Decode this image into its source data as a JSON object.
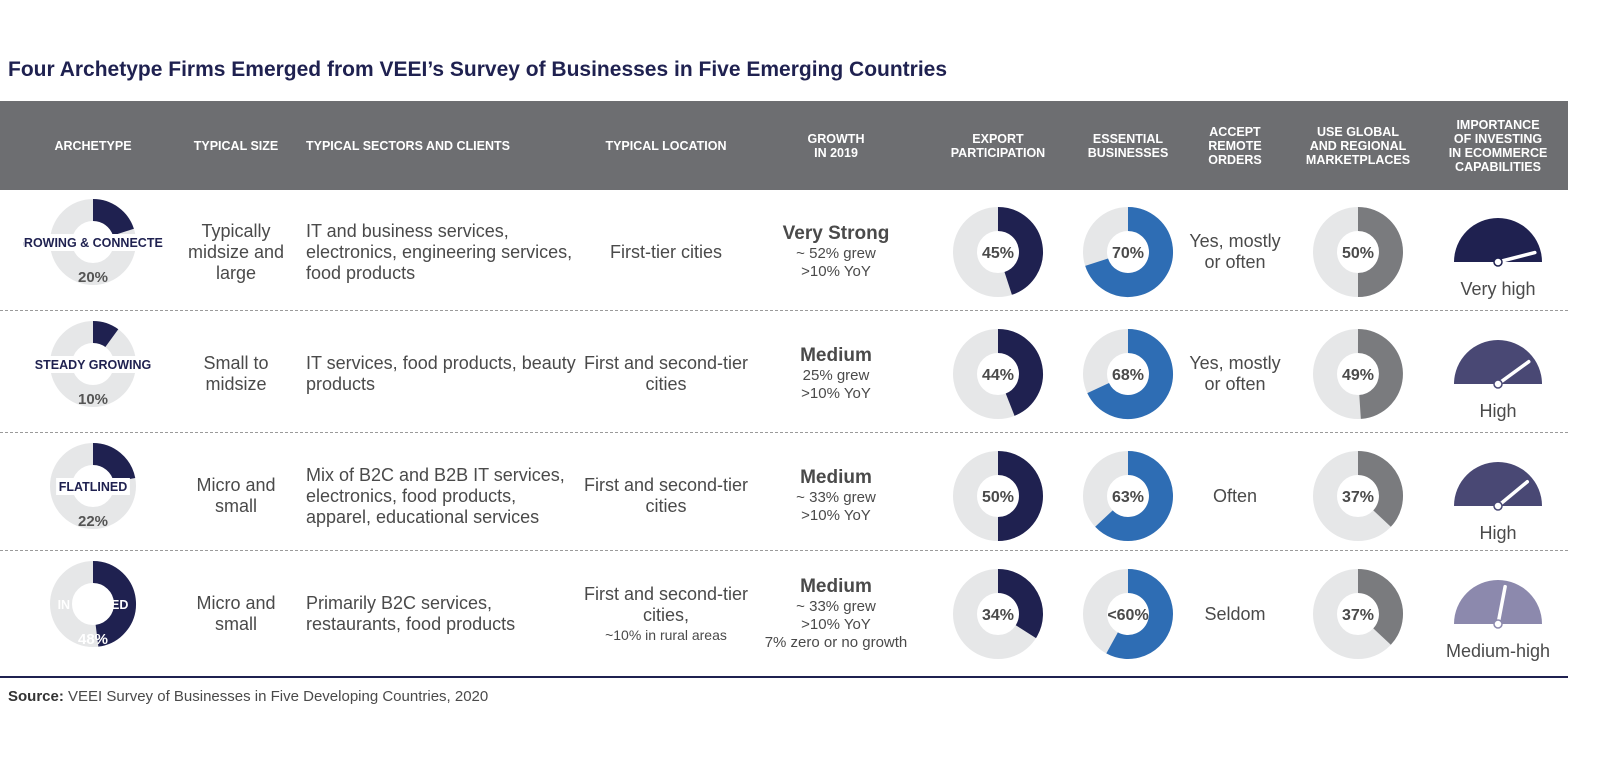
{
  "title": "Four Archetype Firms Emerged from VEEI’s Survey of Businesses in Five Emerging Countries",
  "columns": [
    "ARCHETYPE",
    "TYPICAL SIZE",
    "TYPICAL SECTORS AND CLIENTS",
    "TYPICAL LOCATION",
    "GROWTH IN 2019",
    "EXPORT PARTICIPATION",
    "ESSENTIAL BUSINESSES",
    "ACCEPT REMOTE ORDERS",
    "USE GLOBAL AND REGIONAL MARKETPLACES",
    "IMPORTANCE OF INVESTING IN ECOMMERCE CAPABILITIES"
  ],
  "rows": [
    {
      "archetype": "GROWING & CONNECTED",
      "share_label": "20%",
      "size": "Typically midsize and large",
      "sectors": "IT and business services, electronics, engineering services, food products",
      "location": "First-tier cities",
      "location_note": "",
      "growth_head": "Very Strong",
      "growth_lines": [
        "~ 52% grew",
        ">10% YoY"
      ],
      "export_label": "45%",
      "essential_label": "70%",
      "remote": "Yes, mostly or often",
      "marketplace_label": "50%",
      "importance": "Very high"
    },
    {
      "archetype": "STEADY GROWING",
      "share_label": "10%",
      "size": "Small to midsize",
      "sectors": "IT services, food products, beauty products",
      "location": "First and second-tier cities",
      "location_note": "",
      "growth_head": "Medium",
      "growth_lines": [
        "25% grew",
        ">10% YoY"
      ],
      "export_label": "44%",
      "essential_label": "68%",
      "remote": "Yes, mostly or often",
      "marketplace_label": "49%",
      "importance": "High"
    },
    {
      "archetype": "FLATLINED",
      "share_label": "22%",
      "size": "Micro and small",
      "sectors": "Mix of B2C and B2B IT services, electronics, food products, apparel, educational services",
      "location": "First and second-tier cities",
      "location_note": "",
      "growth_head": "Medium",
      "growth_lines": [
        "~ 33% grew",
        ">10% YoY"
      ],
      "export_label": "50%",
      "essential_label": "63%",
      "remote": "Often",
      "marketplace_label": "37%",
      "importance": "High"
    },
    {
      "archetype": "IN THE RED",
      "share_label": "48%",
      "size": "Micro and small",
      "sectors": "Primarily B2C services, restaurants, food products",
      "location": "First and second-tier cities,",
      "location_note": "~10% in rural areas",
      "growth_head": "Medium",
      "growth_lines": [
        "~ 33% grew",
        ">10% YoY",
        "7% zero or no growth"
      ],
      "export_label": "34%",
      "essential_label": "<60%",
      "remote": "Seldom",
      "marketplace_label": "37%",
      "importance": "Medium-high"
    }
  ],
  "chart_data": {
    "type": "table",
    "title": "Four Archetype Firms Emerged from VEEI’s Survey of Businesses in Five Emerging Countries",
    "categories": [
      "GROWING & CONNECTED",
      "STEADY GROWING",
      "FLATLINED",
      "IN THE RED"
    ],
    "series": [
      {
        "name": "Share of firms",
        "values": [
          20,
          10,
          22,
          48
        ]
      },
      {
        "name": "Export participation",
        "values": [
          45,
          44,
          50,
          34
        ]
      },
      {
        "name": "Essential businesses",
        "values": [
          70,
          68,
          63,
          58
        ]
      },
      {
        "name": "Use global and regional marketplaces",
        "values": [
          50,
          49,
          37,
          37
        ]
      },
      {
        "name": "Importance of investing in ecommerce capabilities (gauge level 0-1)",
        "values": [
          0.92,
          0.8,
          0.78,
          0.56
        ]
      }
    ]
  },
  "colors": {
    "navy": "#1f2150",
    "blue": "#2e6db4",
    "gray": "#7a7b7e",
    "track": "#e6e7e8",
    "header": "#6d6e71",
    "gauge": [
      "#1f2150",
      "#494874",
      "#494874",
      "#8c89ad"
    ]
  },
  "source_label": "Source:",
  "source_text": " VEEI Survey of Businesses in Five Developing Countries, 2020"
}
